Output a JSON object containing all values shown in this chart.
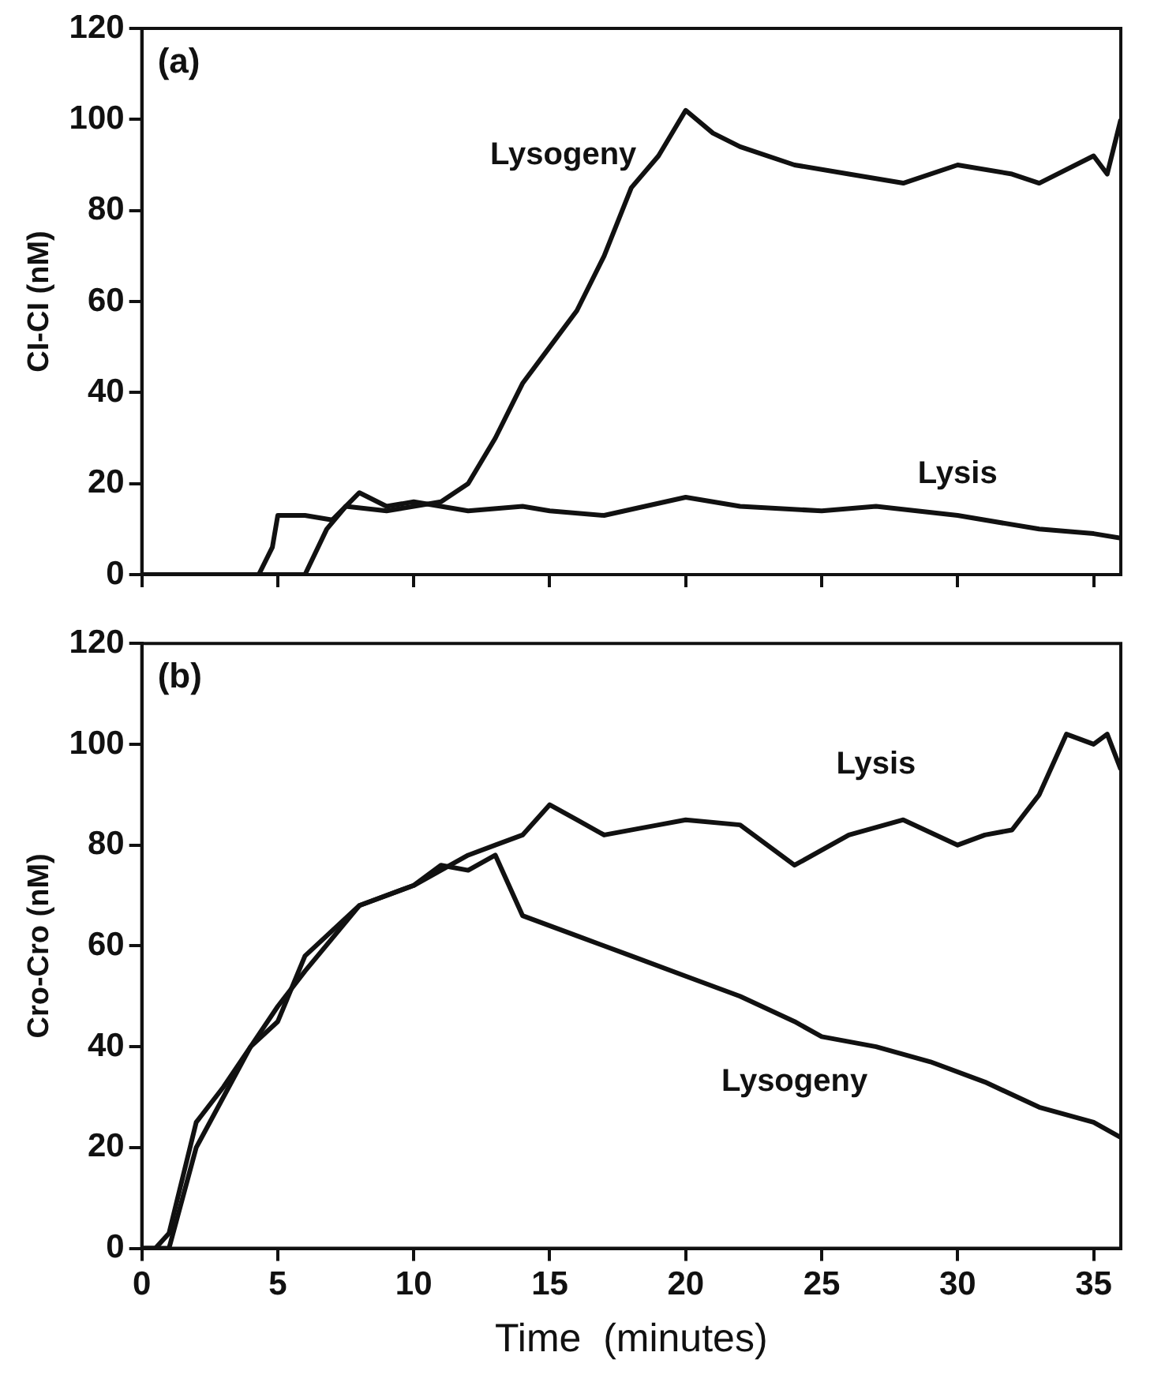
{
  "chart_data": [
    {
      "type": "line",
      "title": "(a)",
      "ylabel": "CI-CI (nM)",
      "xlim": [
        0,
        36
      ],
      "xticks": [
        0,
        5,
        10,
        15,
        20,
        25,
        30,
        35
      ],
      "ylim": [
        0,
        120
      ],
      "yticks": [
        0,
        20,
        40,
        60,
        80,
        100,
        120
      ],
      "tick_labels": "y",
      "grid": false,
      "legend": false,
      "series": [
        {
          "name": "Lysogeny",
          "color": "#111111",
          "x": [
            0,
            6,
            6.8,
            7.5,
            9,
            11,
            12,
            13,
            14,
            15,
            16,
            17,
            18,
            19,
            20,
            21,
            22,
            24,
            26,
            28,
            30,
            32,
            33,
            35,
            35.5,
            36
          ],
          "values": [
            0,
            0,
            10,
            15,
            14,
            16,
            20,
            30,
            42,
            50,
            58,
            70,
            85,
            92,
            102,
            97,
            94,
            90,
            88,
            86,
            90,
            88,
            86,
            92,
            88,
            100
          ]
        },
        {
          "name": "Lysis",
          "color": "#111111",
          "x": [
            0,
            4.3,
            4.8,
            5,
            6,
            7,
            8,
            9,
            10,
            12,
            14,
            15,
            17,
            20,
            22,
            25,
            27,
            30,
            33,
            35,
            36
          ],
          "values": [
            0,
            0,
            6,
            13,
            13,
            12,
            18,
            15,
            16,
            14,
            15,
            14,
            13,
            17,
            15,
            14,
            15,
            13,
            10,
            9,
            8
          ]
        }
      ]
    },
    {
      "type": "line",
      "title": "(b)",
      "xlabel": "Time  (minutes)",
      "ylabel": "Cro-Cro (nM)",
      "xlim": [
        0,
        36
      ],
      "xticks": [
        0,
        5,
        10,
        15,
        20,
        25,
        30,
        35
      ],
      "ylim": [
        0,
        120
      ],
      "yticks": [
        0,
        20,
        40,
        60,
        80,
        100,
        120
      ],
      "grid": false,
      "legend": false,
      "series": [
        {
          "name": "Lysis",
          "color": "#111111",
          "x": [
            0,
            0.5,
            1,
            2,
            3,
            4,
            5,
            6,
            8,
            10,
            12,
            13,
            14,
            15,
            16,
            17,
            19,
            20,
            22,
            24,
            26,
            28,
            30,
            31,
            32,
            33,
            34,
            35,
            35.5,
            36
          ],
          "values": [
            0,
            0,
            3,
            25,
            32,
            40,
            48,
            55,
            68,
            72,
            78,
            80,
            82,
            88,
            85,
            82,
            84,
            85,
            84,
            76,
            82,
            85,
            80,
            82,
            83,
            90,
            102,
            100,
            102,
            95
          ]
        },
        {
          "name": "Lysogeny",
          "color": "#111111",
          "x": [
            0,
            1,
            2,
            3,
            4,
            5,
            6,
            8,
            10,
            11,
            12,
            13,
            13.5,
            14,
            15,
            16,
            18,
            20,
            21,
            22,
            24,
            25,
            27,
            29,
            31,
            33,
            35,
            36
          ],
          "values": [
            0,
            0,
            20,
            30,
            40,
            45,
            58,
            68,
            72,
            76,
            75,
            78,
            72,
            66,
            64,
            62,
            58,
            54,
            52,
            50,
            45,
            42,
            40,
            37,
            33,
            28,
            25,
            22
          ]
        }
      ]
    }
  ]
}
